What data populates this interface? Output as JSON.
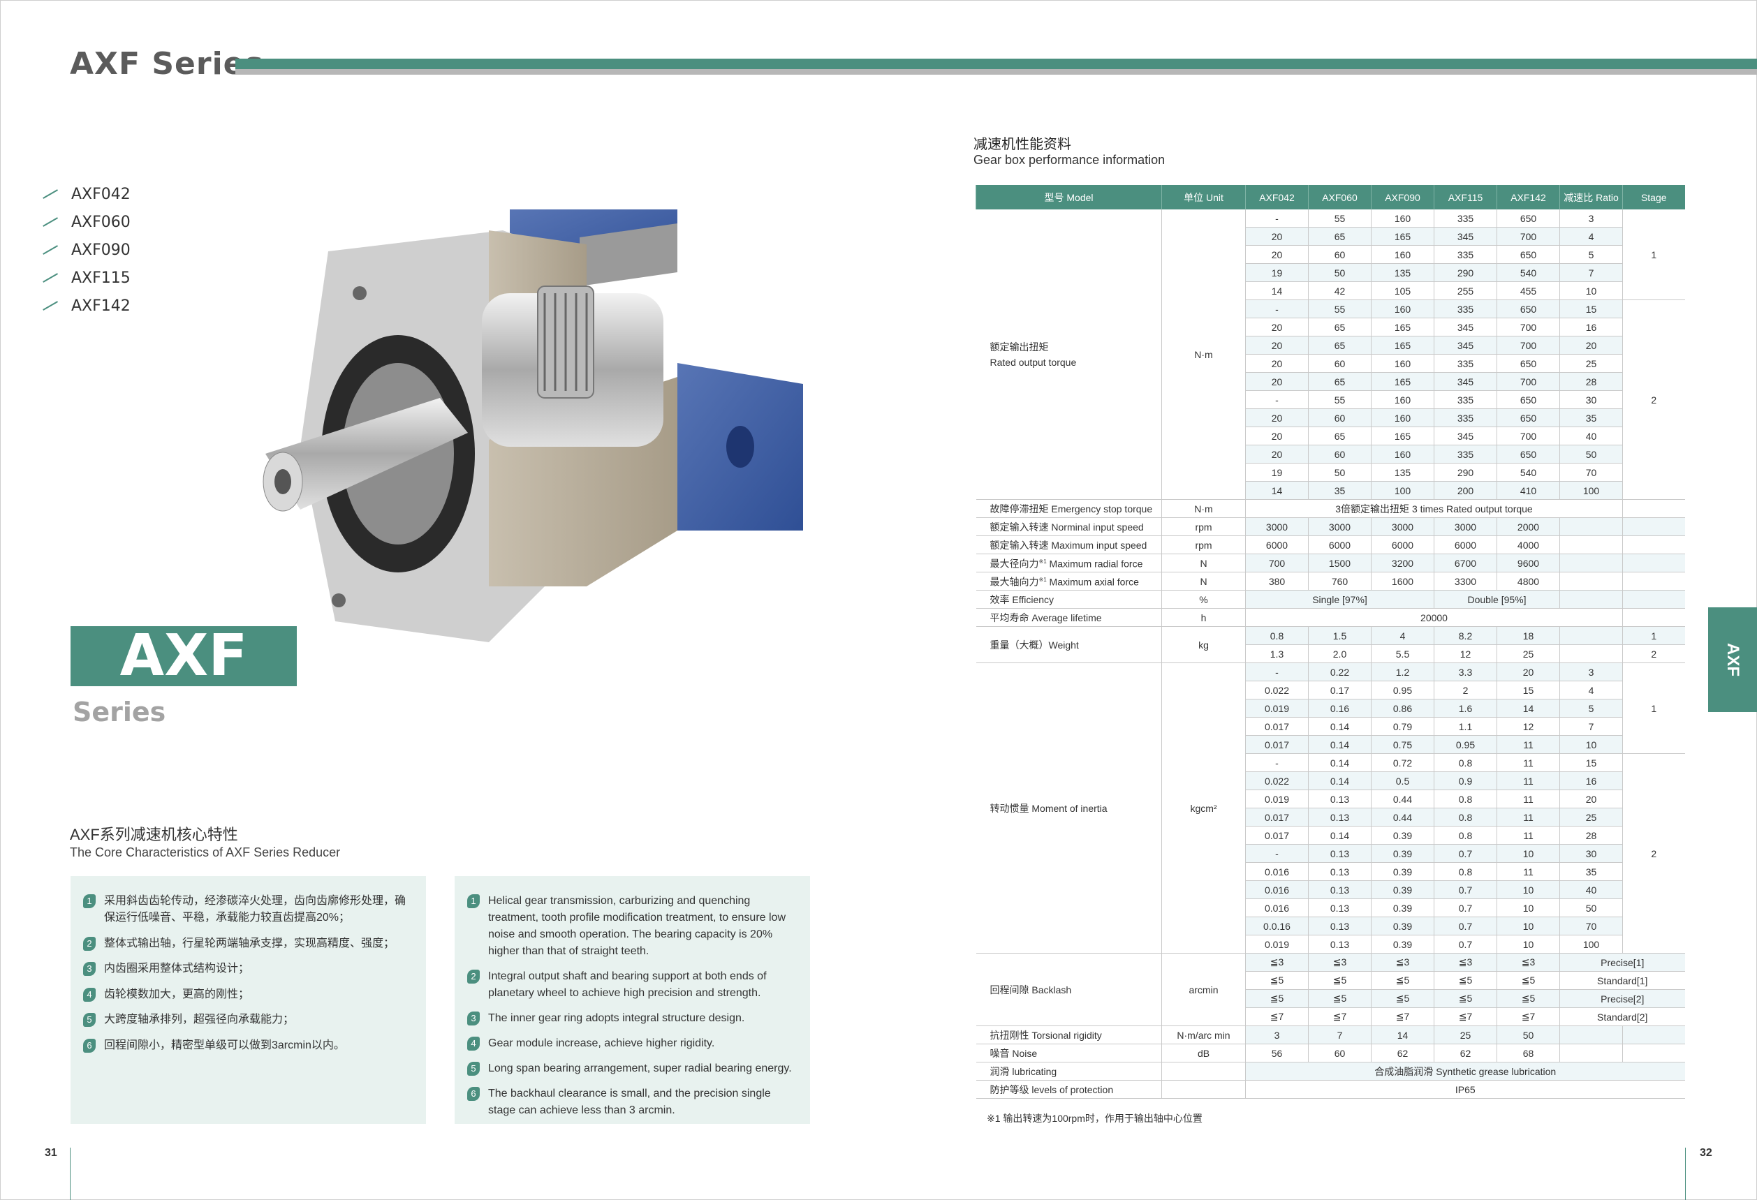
{
  "header": {
    "title": "AXF Series"
  },
  "models": [
    "AXF042",
    "AXF060",
    "AXF090",
    "AXF115",
    "AXF142"
  ],
  "brand": {
    "badge": "AXF",
    "subtitle": "Series",
    "side_tab": "AXF",
    "accent": "#4b8f7f"
  },
  "features": {
    "title_cn": "AXF系列减速机核心特性",
    "title_en": "The Core Characteristics of AXF Series Reducer",
    "cn": [
      "采用斜齿齿轮传动，经渗碳淬火处理，齿向齿廓修形处理，确保运行低噪音、平稳，承载能力较直齿提高20%；",
      "整体式输出轴，行星轮两端轴承支撑，实现高精度、强度；",
      "内齿圈采用整体式结构设计；",
      "齿轮模数加大，更高的刚性；",
      "大跨度轴承排列，超强径向承载能力；",
      "回程间隙小，精密型单级可以做到3arcmin以内。"
    ],
    "en": [
      "Helical gear transmission, carburizing and quenching treatment, tooth profile modification treatment, to ensure low noise and smooth operation. The bearing capacity is 20% higher than that of straight teeth.",
      "Integral output shaft and bearing support at both ends of planetary wheel to achieve high precision and strength.",
      "The inner gear ring adopts integral structure design.",
      "Gear module increase, achieve higher rigidity.",
      "Long span bearing arrangement, super radial bearing energy.",
      "The backhaul clearance is small, and the precision single stage can achieve less than 3 arcmin."
    ]
  },
  "pages": {
    "left": "31",
    "right": "32"
  },
  "table": {
    "title_cn": "减速机性能资料",
    "title_en": "Gear box performance information",
    "headers": [
      "型号 Model",
      "单位 Unit",
      "AXF042",
      "AXF060",
      "AXF090",
      "AXF115",
      "AXF142",
      "减速比 Ratio",
      "Stage"
    ],
    "groups": [
      {
        "label": "额定输出扭矩",
        "label2": "Rated output torque",
        "unit": "N·m",
        "stages": [
          {
            "value": "1",
            "span": 5
          },
          {
            "value": "2",
            "span": 11
          }
        ],
        "rows": [
          [
            "-",
            "55",
            "160",
            "335",
            "650",
            "3"
          ],
          [
            "20",
            "65",
            "165",
            "345",
            "700",
            "4"
          ],
          [
            "20",
            "60",
            "160",
            "335",
            "650",
            "5"
          ],
          [
            "19",
            "50",
            "135",
            "290",
            "540",
            "7"
          ],
          [
            "14",
            "42",
            "105",
            "255",
            "455",
            "10"
          ],
          [
            "-",
            "55",
            "160",
            "335",
            "650",
            "15"
          ],
          [
            "20",
            "65",
            "165",
            "345",
            "700",
            "16"
          ],
          [
            "20",
            "65",
            "165",
            "345",
            "700",
            "20"
          ],
          [
            "20",
            "60",
            "160",
            "335",
            "650",
            "25"
          ],
          [
            "20",
            "65",
            "165",
            "345",
            "700",
            "28"
          ],
          [
            "-",
            "55",
            "160",
            "335",
            "650",
            "30"
          ],
          [
            "20",
            "60",
            "160",
            "335",
            "650",
            "35"
          ],
          [
            "20",
            "65",
            "165",
            "345",
            "700",
            "40"
          ],
          [
            "20",
            "60",
            "160",
            "335",
            "650",
            "50"
          ],
          [
            "19",
            "50",
            "135",
            "290",
            "540",
            "70"
          ],
          [
            "14",
            "35",
            "100",
            "200",
            "410",
            "100"
          ]
        ]
      },
      {
        "label": "故障停滞扭矩 Emergency stop torque",
        "unit": "N·m",
        "rows": [
          [
            {
              "t": "3倍额定输出扭矩 3 times Rated output torque",
              "span": 6
            },
            ""
          ]
        ]
      },
      {
        "label": "额定输入转速 Norminal input speed",
        "unit": "rpm",
        "rows": [
          [
            "3000",
            "3000",
            "3000",
            "3000",
            "2000",
            "",
            ""
          ]
        ]
      },
      {
        "label": "额定输入转速 Maximum input speed",
        "unit": "rpm",
        "rows": [
          [
            "6000",
            "6000",
            "6000",
            "6000",
            "4000",
            "",
            ""
          ]
        ]
      },
      {
        "label": "最大径向力",
        "sup": "※1",
        "label_tail": " Maximum radial force",
        "unit": "N",
        "rows": [
          [
            "700",
            "1500",
            "3200",
            "6700",
            "9600",
            "",
            ""
          ]
        ]
      },
      {
        "label": "最大轴向力",
        "sup": "※1",
        "label_tail": " Maximum axial force",
        "unit": "N",
        "rows": [
          [
            "380",
            "760",
            "1600",
            "3300",
            "4800",
            "",
            ""
          ]
        ]
      },
      {
        "label": "效率 Efficiency",
        "unit": "%",
        "rows": [
          [
            {
              "t": "Single [97%]",
              "span": 3
            },
            {
              "t": "Double [95%]",
              "span": 2
            },
            "",
            ""
          ]
        ]
      },
      {
        "label": "平均寿命 Average lifetime",
        "unit": "h",
        "rows": [
          [
            {
              "t": "20000",
              "span": 6
            },
            ""
          ]
        ]
      },
      {
        "label": "重量（大概）Weight",
        "unit": "kg",
        "rows": [
          [
            "0.8",
            "1.5",
            "4",
            "8.2",
            "18",
            "",
            "1"
          ],
          [
            "1.3",
            "2.0",
            "5.5",
            "12",
            "25",
            "",
            "2"
          ]
        ]
      },
      {
        "label": "转动惯量 Moment of inertia",
        "unit": "kgcm²",
        "stages": [
          {
            "value": "1",
            "span": 5
          },
          {
            "value": "2",
            "span": 11
          }
        ],
        "rows": [
          [
            "-",
            "0.22",
            "1.2",
            "3.3",
            "20",
            "3"
          ],
          [
            "0.022",
            "0.17",
            "0.95",
            "2",
            "15",
            "4"
          ],
          [
            "0.019",
            "0.16",
            "0.86",
            "1.6",
            "14",
            "5"
          ],
          [
            "0.017",
            "0.14",
            "0.79",
            "1.1",
            "12",
            "7"
          ],
          [
            "0.017",
            "0.14",
            "0.75",
            "0.95",
            "11",
            "10"
          ],
          [
            "-",
            "0.14",
            "0.72",
            "0.8",
            "11",
            "15"
          ],
          [
            "0.022",
            "0.14",
            "0.5",
            "0.9",
            "11",
            "16"
          ],
          [
            "0.019",
            "0.13",
            "0.44",
            "0.8",
            "11",
            "20"
          ],
          [
            "0.017",
            "0.13",
            "0.44",
            "0.8",
            "11",
            "25"
          ],
          [
            "0.017",
            "0.14",
            "0.39",
            "0.8",
            "11",
            "28"
          ],
          [
            "-",
            "0.13",
            "0.39",
            "0.7",
            "10",
            "30"
          ],
          [
            "0.016",
            "0.13",
            "0.39",
            "0.8",
            "11",
            "35"
          ],
          [
            "0.016",
            "0.13",
            "0.39",
            "0.7",
            "10",
            "40"
          ],
          [
            "0.016",
            "0.13",
            "0.39",
            "0.7",
            "10",
            "50"
          ],
          [
            "0.0.16",
            "0.13",
            "0.39",
            "0.7",
            "10",
            "70"
          ],
          [
            "0.019",
            "0.13",
            "0.39",
            "0.7",
            "10",
            "100"
          ]
        ]
      },
      {
        "label": "回程间隙 Backlash",
        "unit": "arcmin",
        "rows": [
          [
            "≦3",
            "≦3",
            "≦3",
            "≦3",
            "≦3",
            {
              "t": "Precise[1]",
              "span": 2
            }
          ],
          [
            "≦5",
            "≦5",
            "≦5",
            "≦5",
            "≦5",
            {
              "t": "Standard[1]",
              "span": 2
            }
          ],
          [
            "≦5",
            "≦5",
            "≦5",
            "≦5",
            "≦5",
            {
              "t": "Precise[2]",
              "span": 2
            }
          ],
          [
            "≦7",
            "≦7",
            "≦7",
            "≦7",
            "≦7",
            {
              "t": "Standard[2]",
              "span": 2
            }
          ]
        ]
      },
      {
        "label": "抗扭刚性 Torsional rigidity",
        "unit": "N·m/arc  min",
        "rows": [
          [
            "3",
            "7",
            "14",
            "25",
            "50",
            "",
            ""
          ]
        ]
      },
      {
        "label": "噪音 Noise",
        "unit": "dB",
        "rows": [
          [
            "56",
            "60",
            "62",
            "62",
            "68",
            "",
            ""
          ]
        ]
      },
      {
        "label": "润滑 lubricating",
        "unit": "",
        "rows": [
          [
            {
              "t": "合成油脂润滑 Synthetic grease lubrication",
              "span": 7
            }
          ]
        ]
      },
      {
        "label": "防护等级 levels of protection",
        "unit": "",
        "rows": [
          [
            {
              "t": "IP65",
              "span": 7
            }
          ]
        ]
      }
    ],
    "footnote": "※1 输出转速为100rpm时，作用于输出轴中心位置"
  }
}
